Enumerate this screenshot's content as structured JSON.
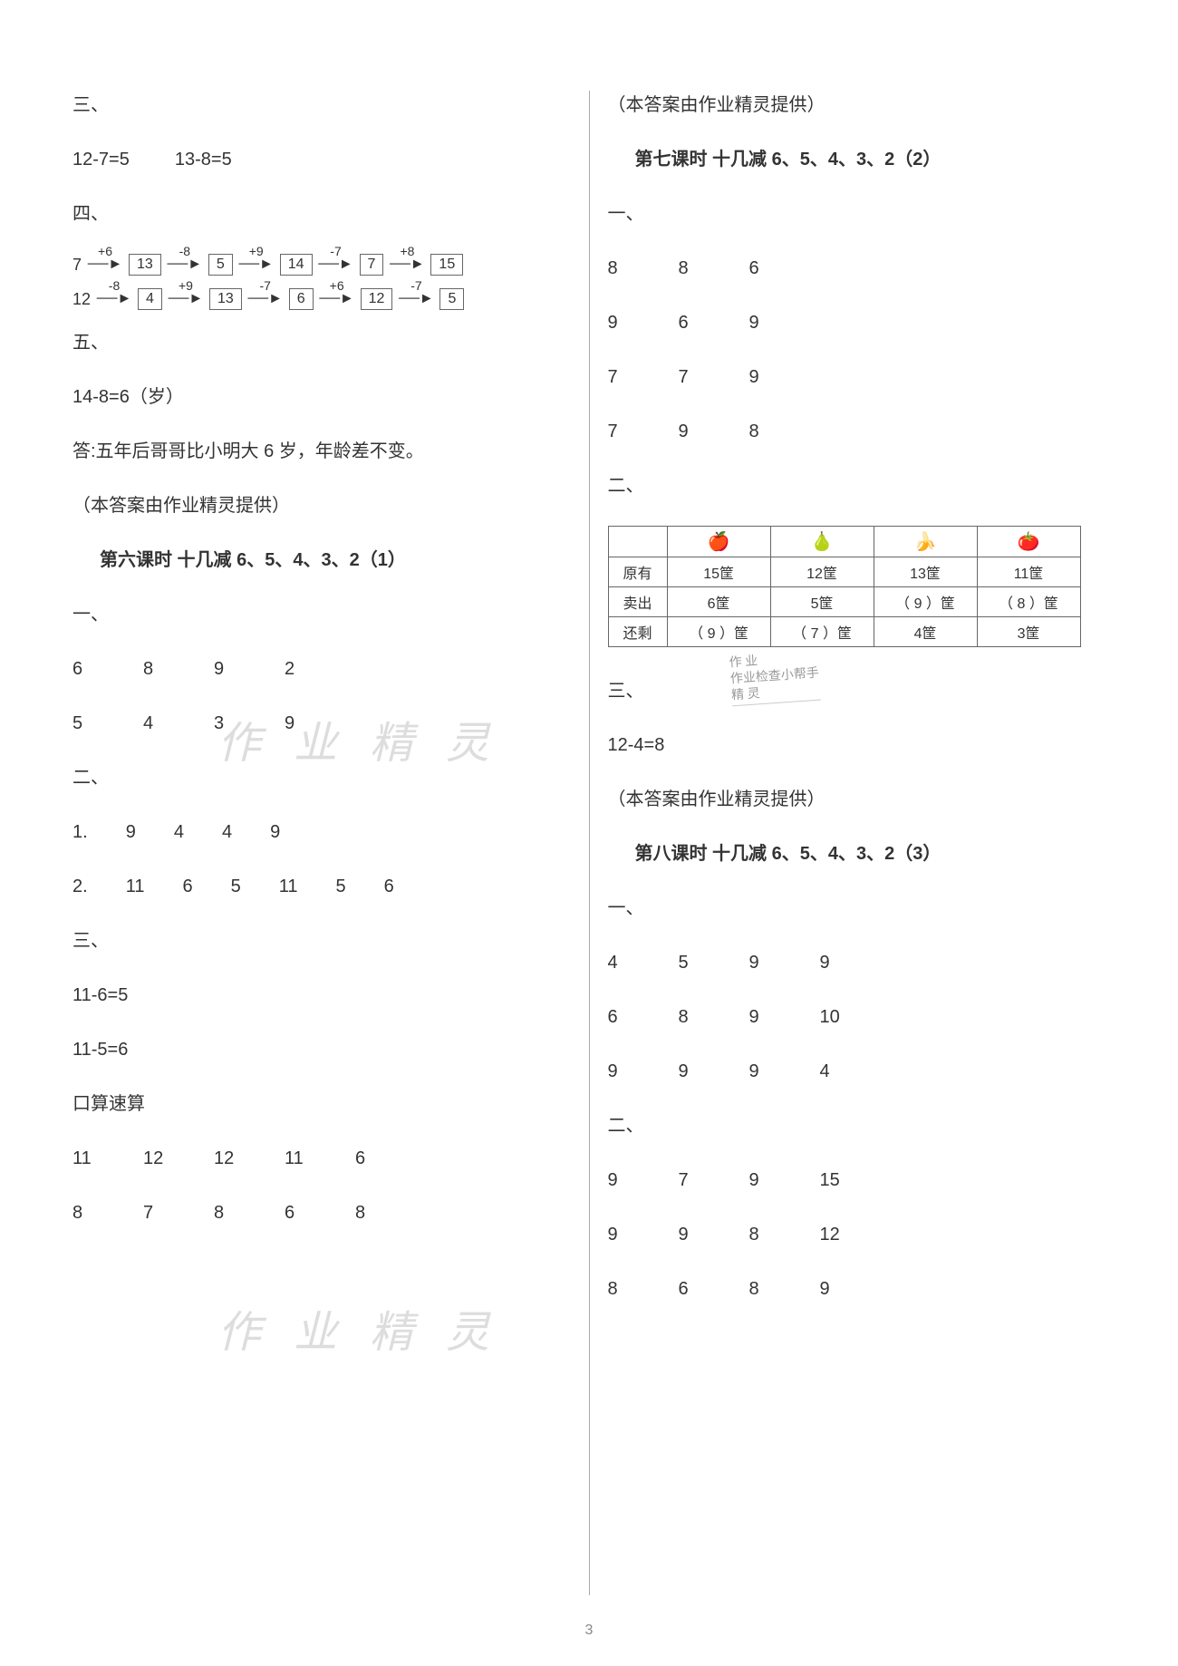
{
  "left": {
    "s3_label": "三、",
    "s3_eq1": "12-7=5",
    "s3_eq2": "13-8=5",
    "s4_label": "四、",
    "chain1": {
      "start": "7",
      "ops": [
        "+6",
        "-8",
        "+9",
        "-7",
        "+8"
      ],
      "boxes": [
        "13",
        "5",
        "14",
        "7",
        "15"
      ]
    },
    "chain2": {
      "start": "12",
      "ops": [
        "-8",
        "+9",
        "-7",
        "+6",
        "-7"
      ],
      "boxes": [
        "4",
        "13",
        "6",
        "12",
        "5"
      ]
    },
    "s5_label": "五、",
    "s5_eq": "14-8=6（岁）",
    "s5_ans": "答:五年后哥哥比小明大 6 岁，年龄差不变。",
    "credit1": "（本答案由作业精灵提供）",
    "lesson6_title": "第六课时 十几减 6、5、4、3、2（1）",
    "l6_s1_label": "一、",
    "l6_s1_r1": [
      "6",
      "8",
      "9",
      "2"
    ],
    "l6_s1_r2": [
      "5",
      "4",
      "3",
      "9"
    ],
    "l6_s2_label": "二、",
    "l6_s2_r1_label": "1.",
    "l6_s2_r1": [
      "9",
      "4",
      "4",
      "9"
    ],
    "l6_s2_r2_label": "2.",
    "l6_s2_r2": [
      "11",
      "6",
      "5",
      "11",
      "5",
      "6"
    ],
    "l6_s3_label": "三、",
    "l6_s3_eq1": "11-6=5",
    "l6_s3_eq2": "11-5=6",
    "oral_label": "口算速算",
    "oral_r1": [
      "11",
      "12",
      "12",
      "11",
      "6"
    ],
    "oral_r2": [
      "8",
      "7",
      "8",
      "6",
      "8"
    ]
  },
  "right": {
    "credit_top": "（本答案由作业精灵提供）",
    "lesson7_title": "第七课时 十几减 6、5、4、3、2（2）",
    "l7_s1_label": "一、",
    "l7_s1_r1": [
      "8",
      "8",
      "6"
    ],
    "l7_s1_r2": [
      "9",
      "6",
      "9"
    ],
    "l7_s1_r3": [
      "7",
      "7",
      "9"
    ],
    "l7_s1_r4": [
      "7",
      "9",
      "8"
    ],
    "l7_s2_label": "二、",
    "fruit_table": {
      "icons": [
        "🍎",
        "🍐",
        "🍌",
        "🍅"
      ],
      "row_labels": [
        "原有",
        "卖出",
        "还剩"
      ],
      "row1": [
        "15筐",
        "12筐",
        "13筐",
        "11筐"
      ],
      "row2": [
        "6筐",
        "5筐",
        "（ 9 ）筐",
        "（ 8 ）筐"
      ],
      "row3": [
        "（ 9 ）筐",
        "（ 7 ）筐",
        "4筐",
        "3筐"
      ]
    },
    "stamp_l1": "作 业",
    "stamp_l2": "作业检查小帮手",
    "stamp_l3": "精 灵",
    "l7_s3_label": "三、",
    "l7_s3_eq": "12-4=8",
    "credit2": "（本答案由作业精灵提供）",
    "lesson8_title": "第八课时 十几减 6、5、4、3、2（3）",
    "l8_s1_label": "一、",
    "l8_s1_r1": [
      "4",
      "5",
      "9",
      "9"
    ],
    "l8_s1_r2": [
      "6",
      "8",
      "9",
      "10"
    ],
    "l8_s1_r3": [
      "9",
      "9",
      "9",
      "4"
    ],
    "l8_s2_label": "二、",
    "l8_s2_r1": [
      "9",
      "7",
      "9",
      "15"
    ],
    "l8_s2_r2": [
      "9",
      "9",
      "8",
      "12"
    ],
    "l8_s2_r3": [
      "8",
      "6",
      "8",
      "9"
    ]
  },
  "watermark": "作 业 精 灵",
  "page_number": "3"
}
